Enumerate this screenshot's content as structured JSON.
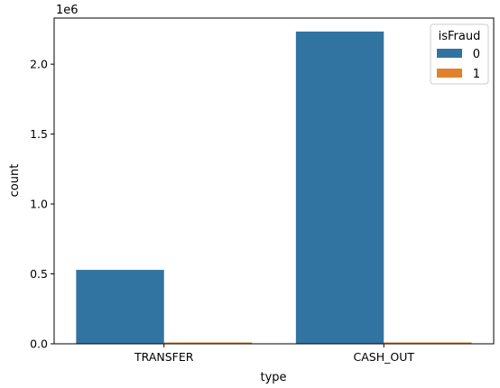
{
  "chart_data": {
    "type": "bar",
    "xlabel": "type",
    "ylabel": "count",
    "offset_label": "1e6",
    "categories": [
      "TRANSFER",
      "CASH_OUT"
    ],
    "ylim": [
      0,
      2.33
    ],
    "yticks": [
      0.0,
      0.5,
      1.0,
      1.5,
      2.0
    ],
    "ytick_labels": [
      "0.0",
      "0.5",
      "1.0",
      "1.5",
      "2.0"
    ],
    "grid": false,
    "legend": {
      "title": "isFraud",
      "position": "top-right"
    },
    "series": [
      {
        "name": "0",
        "color": "#3274a1",
        "values": [
          0.528812,
          2.233384
        ]
      },
      {
        "name": "1",
        "color": "#e1812c",
        "values": [
          0.004097,
          0.004116
        ]
      }
    ]
  }
}
